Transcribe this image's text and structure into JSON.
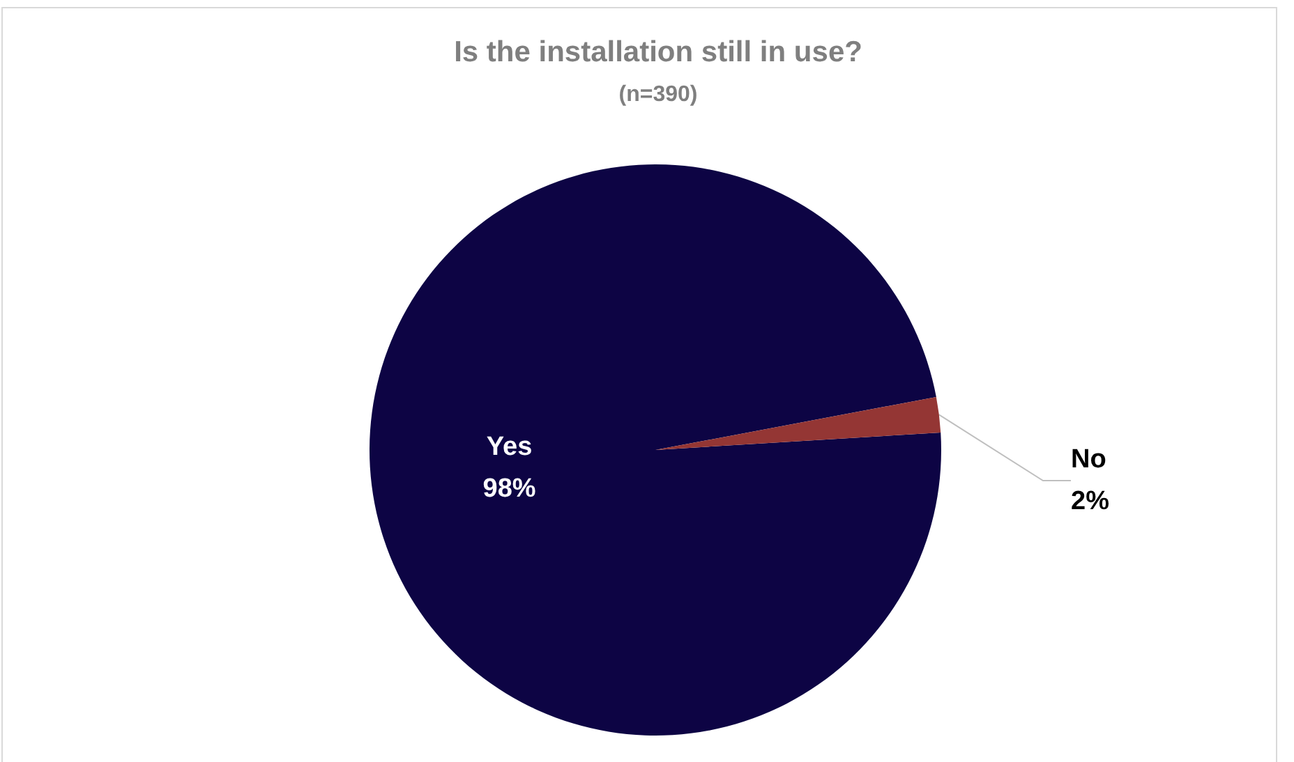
{
  "chart_data": {
    "type": "pie",
    "title": "Is the installation still in use?",
    "subtitle": "(n=390)",
    "categories": [
      "Yes",
      "No"
    ],
    "values": [
      98,
      2
    ],
    "colors": [
      "#0d0444",
      "#943634"
    ],
    "value_labels": [
      "98%",
      "2%"
    ]
  }
}
